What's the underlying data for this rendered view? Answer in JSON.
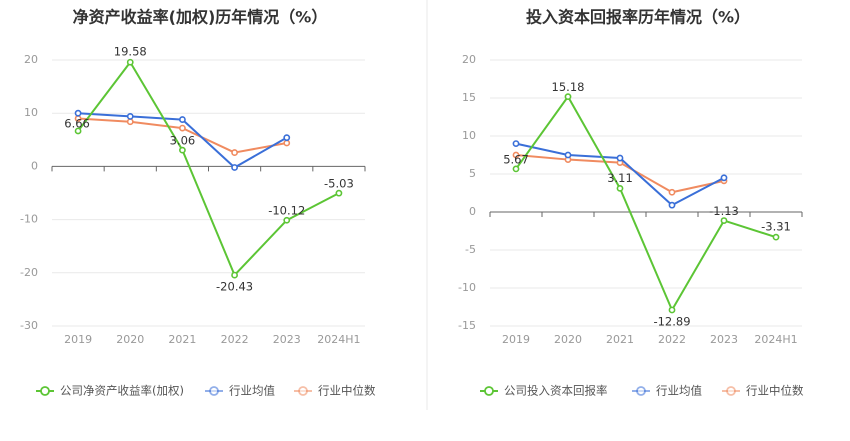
{
  "colors": {
    "company": "#5cc535",
    "industry_avg": "#3a6fd8",
    "industry_median": "#f08b60"
  },
  "chart_data": [
    {
      "type": "line",
      "title": "净资产收益率(加权)历年情况（%）",
      "categories": [
        "2019",
        "2020",
        "2021",
        "2022",
        "2023",
        "2024H1"
      ],
      "ylim": [
        -30,
        20
      ],
      "yticks": [
        20,
        10,
        0,
        -10,
        -20,
        -30
      ],
      "legend_position": "bottom",
      "series": [
        {
          "name": "公司净资产收益率(加权)",
          "values": [
            6.66,
            19.58,
            3.06,
            -20.43,
            -10.12,
            -5.03
          ],
          "labels": [
            "6.66",
            "19.58",
            "3.06",
            "-20.43",
            "-10.12",
            "-5.03"
          ]
        },
        {
          "name": "行业均值",
          "values": [
            10.0,
            9.4,
            8.8,
            -0.2,
            5.4,
            null
          ]
        },
        {
          "name": "行业中位数",
          "values": [
            9.0,
            8.4,
            7.2,
            2.6,
            4.4,
            null
          ]
        }
      ]
    },
    {
      "type": "line",
      "title": "投入资本回报率历年情况（%）",
      "categories": [
        "2019",
        "2020",
        "2021",
        "2022",
        "2023",
        "2024H1"
      ],
      "ylim": [
        -15,
        20
      ],
      "yticks": [
        20,
        15,
        10,
        5,
        0,
        -5,
        -10,
        -15
      ],
      "legend_position": "bottom",
      "series": [
        {
          "name": "公司投入资本回报率",
          "values": [
            5.67,
            15.18,
            3.11,
            -12.89,
            -1.13,
            -3.31
          ],
          "labels": [
            "5.67",
            "15.18",
            "3.11",
            "-12.89",
            "-1.13",
            "-3.31"
          ]
        },
        {
          "name": "行业均值",
          "values": [
            9.0,
            7.5,
            7.1,
            0.9,
            4.5,
            null
          ]
        },
        {
          "name": "行业中位数",
          "values": [
            7.5,
            6.9,
            6.5,
            2.6,
            4.1,
            null
          ]
        }
      ]
    }
  ]
}
